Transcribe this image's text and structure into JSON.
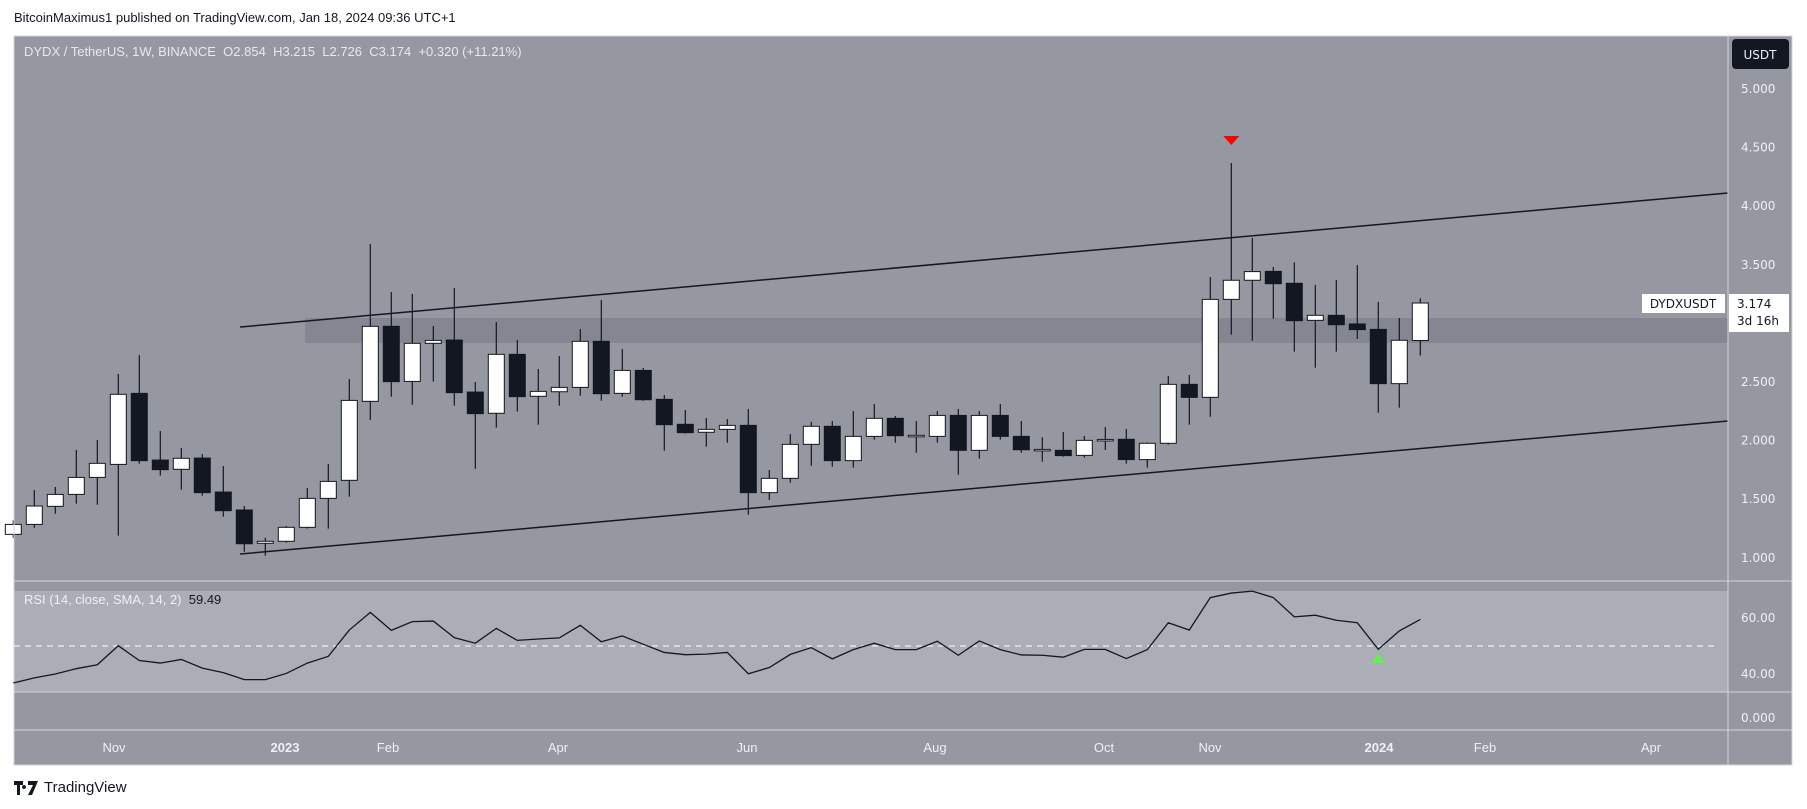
{
  "header": {
    "publisher": "BitcoinMaximus1 published on TradingView.com, Jan 18, 2024 09:36 UTC+1",
    "symbol": "DYDX / TetherUS, 1W, BINANCE",
    "open_label": "O",
    "open": "2.854",
    "high_label": "H",
    "high": "3.215",
    "low_label": "L",
    "low": "2.726",
    "close_label": "C",
    "close": "3.174",
    "change": "+0.320 (+11.21%)"
  },
  "currency_badge": "USDT",
  "last_price_tag": {
    "symbol": "DYDXUSDT",
    "price": "3.174",
    "countdown": "3d 16h"
  },
  "rsi_legend": {
    "label": "RSI (14, close, SMA, 14, 2)",
    "value": "59.49"
  },
  "footer": {
    "brand": "TradingView"
  },
  "colors": {
    "background": "#9598a1",
    "rsi_band": "#abaeb6",
    "zone": "#848791",
    "up_candle": "#ffffff",
    "down_candle": "#131722",
    "top_marker": "#ff0000",
    "bottom_marker": "#66ee55"
  },
  "chart_data": [
    {
      "type": "candlestick",
      "title": "DYDX / TetherUS, 1W, BINANCE",
      "price_ticks": [
        "5.000",
        "4.500",
        "4.000",
        "3.500",
        "2.500",
        "2.000",
        "1.500",
        "1.000"
      ],
      "time_labels": [
        "Nov",
        "2023",
        "Feb",
        "Apr",
        "Jun",
        "Aug",
        "Oct",
        "Nov",
        "2024",
        "Feb",
        "Apr"
      ],
      "ylim": [
        0.55,
        5.4
      ],
      "candles_ohlc": [
        [
          1.2,
          1.32,
          1.17,
          1.285
        ],
        [
          1.285,
          1.578,
          1.257,
          1.442
        ],
        [
          1.439,
          1.604,
          1.376,
          1.541
        ],
        [
          1.541,
          1.92,
          1.462,
          1.686
        ],
        [
          1.686,
          2.005,
          1.453,
          1.806
        ],
        [
          1.797,
          2.568,
          1.189,
          2.395
        ],
        [
          2.403,
          2.73,
          1.803,
          1.829
        ],
        [
          1.834,
          2.082,
          1.701,
          1.752
        ],
        [
          1.755,
          1.937,
          1.581,
          1.849
        ],
        [
          1.851,
          1.885,
          1.53,
          1.556
        ],
        [
          1.561,
          1.783,
          1.351,
          1.402
        ],
        [
          1.408,
          1.442,
          1.052,
          1.12
        ],
        [
          1.124,
          1.171,
          1.018,
          1.141
        ],
        [
          1.141,
          1.271,
          1.129,
          1.26
        ],
        [
          1.26,
          1.595,
          1.25,
          1.507
        ],
        [
          1.507,
          1.8,
          1.249,
          1.652
        ],
        [
          1.661,
          2.525,
          1.521,
          2.343
        ],
        [
          2.335,
          3.677,
          2.176,
          2.975
        ],
        [
          2.975,
          3.268,
          2.375,
          2.503
        ],
        [
          2.505,
          3.251,
          2.306,
          2.83
        ],
        [
          2.83,
          2.978,
          2.503,
          2.855
        ],
        [
          2.858,
          3.302,
          2.298,
          2.409
        ],
        [
          2.414,
          2.5,
          1.76,
          2.23
        ],
        [
          2.233,
          3.012,
          2.11,
          2.736
        ],
        [
          2.736,
          2.858,
          2.247,
          2.375
        ],
        [
          2.378,
          2.611,
          2.136,
          2.42
        ],
        [
          2.417,
          2.722,
          2.298,
          2.454
        ],
        [
          2.454,
          2.952,
          2.383,
          2.847
        ],
        [
          2.847,
          3.199,
          2.34,
          2.4
        ],
        [
          2.403,
          2.781,
          2.375,
          2.599
        ],
        [
          2.599,
          2.619,
          2.34,
          2.349
        ],
        [
          2.352,
          2.389,
          1.914,
          2.136
        ],
        [
          2.139,
          2.261,
          2.059,
          2.068
        ],
        [
          2.071,
          2.193,
          1.948,
          2.096
        ],
        [
          2.096,
          2.184,
          1.982,
          2.13
        ],
        [
          2.13,
          2.27,
          1.368,
          1.556
        ],
        [
          1.556,
          1.749,
          1.493,
          1.678
        ],
        [
          1.678,
          2.056,
          1.641,
          1.968
        ],
        [
          1.968,
          2.161,
          1.786,
          2.122
        ],
        [
          2.122,
          2.167,
          1.777,
          1.829
        ],
        [
          1.829,
          2.252,
          1.769,
          2.036
        ],
        [
          2.036,
          2.312,
          2.008,
          2.19
        ],
        [
          2.19,
          2.21,
          1.982,
          2.042
        ],
        [
          2.045,
          2.167,
          1.897,
          2.045
        ],
        [
          2.036,
          2.252,
          1.982,
          2.215
        ],
        [
          2.215,
          2.27,
          1.709,
          1.917
        ],
        [
          1.917,
          2.252,
          1.846,
          2.215
        ],
        [
          2.215,
          2.312,
          2.008,
          2.036
        ],
        [
          2.036,
          2.167,
          1.897,
          1.922
        ],
        [
          1.922,
          2.028,
          1.82,
          1.925
        ],
        [
          1.917,
          2.074,
          1.863,
          1.872
        ],
        [
          1.874,
          2.04,
          1.855,
          2.002
        ],
        [
          2.01,
          2.116,
          1.92,
          2.01
        ],
        [
          2.011,
          2.099,
          1.803,
          1.838
        ],
        [
          1.838,
          1.985,
          1.769,
          1.977
        ],
        [
          1.977,
          2.551,
          1.966,
          2.48
        ],
        [
          2.48,
          2.56,
          2.136,
          2.369
        ],
        [
          2.369,
          3.396,
          2.204,
          3.205
        ],
        [
          3.205,
          4.369,
          2.904,
          3.368
        ],
        [
          3.368,
          3.729,
          2.853,
          3.442
        ],
        [
          3.444,
          3.481,
          3.04,
          3.339
        ],
        [
          3.342,
          3.521,
          2.759,
          3.023
        ],
        [
          3.026,
          3.328,
          2.622,
          3.069
        ],
        [
          3.069,
          3.37,
          2.759,
          2.989
        ],
        [
          2.995,
          3.498,
          2.867,
          2.947
        ],
        [
          2.949,
          3.183,
          2.238,
          2.486
        ],
        [
          2.486,
          3.046,
          2.281,
          2.856
        ],
        [
          2.854,
          3.215,
          2.726,
          3.174
        ]
      ],
      "resistance_zone": [
        2.833,
        3.046
      ],
      "channel_upper": {
        "from_candle": 10.8,
        "from_price": 2.969,
        "to_price_at_axis": 4.113
      },
      "channel_lower": {
        "from_candle": 10.8,
        "from_price": 1.032,
        "to_price_at_axis": 2.167
      },
      "top_marker_candle": 58,
      "last_price": 3.174
    },
    {
      "type": "line",
      "title": "RSI (14, close, SMA, 14, 2)",
      "ticks": [
        "60.00",
        "40.00"
      ],
      "midline": 50,
      "values": [
        36.8,
        38.6,
        40.0,
        41.9,
        43.3,
        50.1,
        44.8,
        43.9,
        45.2,
        42.1,
        40.5,
        38.0,
        38.0,
        40.2,
        43.9,
        46.3,
        55.7,
        62.0,
        55.6,
        58.7,
        58.9,
        53.0,
        51.0,
        56.3,
        52.0,
        52.5,
        52.9,
        57.4,
        51.5,
        53.6,
        50.6,
        47.7,
        46.9,
        47.1,
        47.7,
        40.1,
        42.3,
        47.0,
        49.4,
        45.4,
        48.7,
        51.0,
        48.7,
        48.7,
        51.7,
        46.7,
        51.8,
        48.7,
        46.8,
        46.7,
        46.0,
        48.8,
        48.8,
        45.5,
        48.7,
        58.3,
        55.7,
        67.3,
        68.9,
        69.6,
        67.3,
        60.4,
        61.0,
        59.2,
        58.3,
        48.8,
        55.4,
        59.49
      ],
      "bottom_marker_index": 65
    },
    {
      "type": "line",
      "ticks": [
        "0.000"
      ]
    }
  ]
}
